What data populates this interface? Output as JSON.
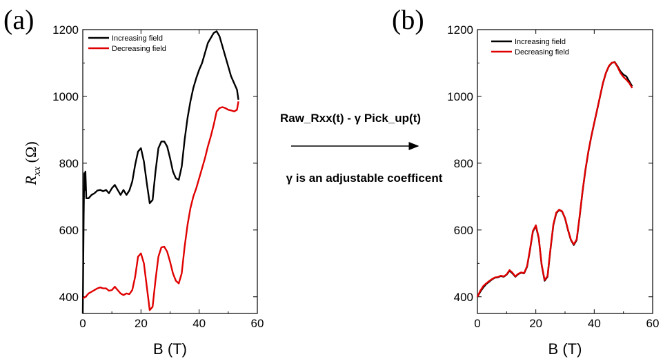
{
  "annotations": {
    "formula": "Raw_Rxx(t) - γ Pick_up(t)",
    "note": "γ is an adjustable coefficent"
  },
  "chart_data": [
    {
      "type": "line",
      "panel_label": "(a)",
      "xlabel": "B (T)",
      "ylabel": {
        "symbol": "R",
        "subscript": "xx",
        "unit": " (Ω)"
      },
      "xlim": [
        0,
        60
      ],
      "ylim": [
        350,
        1200
      ],
      "x_ticks": [
        0,
        20,
        40,
        60
      ],
      "y_ticks": [
        400,
        600,
        800,
        1000,
        1200
      ],
      "legend": "top-left",
      "series": [
        {
          "name": "Increasing field",
          "color": "#000000",
          "x": [
            0,
            0.3,
            0.5,
            0.7,
            0.9,
            1.2,
            2,
            3,
            4,
            5,
            6,
            7,
            8,
            9,
            10,
            11,
            12,
            13,
            14,
            15,
            16,
            17,
            18,
            19,
            20,
            21,
            22,
            23,
            24,
            25,
            26,
            27,
            28,
            29,
            30,
            31,
            32,
            33,
            34,
            35,
            36,
            37,
            38,
            39,
            40,
            41,
            42,
            43,
            44,
            45,
            46,
            47,
            48,
            49,
            50,
            51,
            52,
            53,
            53.5
          ],
          "y": [
            350,
            640,
            770,
            720,
            775,
            695,
            695,
            705,
            710,
            718,
            720,
            716,
            720,
            710,
            725,
            735,
            720,
            705,
            720,
            705,
            718,
            745,
            795,
            835,
            845,
            805,
            740,
            680,
            690,
            775,
            845,
            865,
            865,
            850,
            815,
            775,
            755,
            750,
            790,
            870,
            935,
            985,
            1025,
            1055,
            1080,
            1100,
            1130,
            1160,
            1175,
            1190,
            1195,
            1180,
            1150,
            1120,
            1090,
            1060,
            1040,
            1020,
            990
          ]
        },
        {
          "name": "Decreasing field",
          "color": "#e00000",
          "x": [
            0,
            1,
            2,
            3,
            4,
            5,
            6,
            7,
            8,
            9,
            10,
            11,
            12,
            13,
            14,
            15,
            16,
            17,
            18,
            19,
            20,
            21,
            22,
            23,
            24,
            25,
            26,
            27,
            28,
            29,
            30,
            31,
            32,
            33,
            34,
            35,
            36,
            37,
            38,
            39,
            40,
            41,
            42,
            43,
            44,
            45,
            46,
            47,
            48,
            49,
            50,
            51,
            52,
            53,
            53.5
          ],
          "y": [
            395,
            400,
            410,
            415,
            420,
            425,
            428,
            425,
            425,
            418,
            420,
            430,
            420,
            410,
            405,
            410,
            408,
            420,
            460,
            520,
            530,
            500,
            430,
            360,
            370,
            450,
            520,
            548,
            550,
            535,
            505,
            470,
            448,
            440,
            470,
            550,
            615,
            665,
            700,
            725,
            755,
            785,
            815,
            850,
            880,
            915,
            955,
            965,
            968,
            965,
            960,
            958,
            955,
            960,
            985
          ]
        }
      ]
    },
    {
      "type": "line",
      "panel_label": "(b)",
      "xlabel": "B (T)",
      "xlim": [
        0,
        60
      ],
      "ylim": [
        350,
        1200
      ],
      "x_ticks": [
        0,
        20,
        40,
        60
      ],
      "y_ticks": [
        400,
        600,
        800,
        1000,
        1200
      ],
      "legend": "top-left",
      "series": [
        {
          "name": "Increasing field",
          "color": "#000000",
          "x": [
            0,
            1,
            2,
            3,
            4,
            5,
            6,
            7,
            8,
            9,
            10,
            11,
            12,
            13,
            14,
            15,
            16,
            17,
            18,
            19,
            20,
            21,
            22,
            23,
            24,
            25,
            26,
            27,
            28,
            29,
            30,
            31,
            32,
            33,
            34,
            35,
            36,
            37,
            38,
            39,
            40,
            41,
            42,
            43,
            44,
            45,
            46,
            47,
            48,
            49,
            50,
            51,
            52,
            53
          ],
          "y": [
            400,
            415,
            428,
            438,
            445,
            452,
            457,
            458,
            462,
            460,
            466,
            478,
            470,
            460,
            468,
            472,
            470,
            490,
            540,
            595,
            612,
            575,
            495,
            448,
            460,
            540,
            615,
            650,
            660,
            655,
            635,
            600,
            570,
            555,
            570,
            640,
            715,
            780,
            835,
            880,
            920,
            960,
            1000,
            1040,
            1070,
            1090,
            1100,
            1103,
            1090,
            1075,
            1065,
            1060,
            1045,
            1030
          ]
        },
        {
          "name": "Decreasing field",
          "color": "#e00000",
          "x": [
            0,
            1,
            2,
            3,
            4,
            5,
            6,
            7,
            8,
            9,
            10,
            11,
            12,
            13,
            14,
            15,
            16,
            17,
            18,
            19,
            20,
            21,
            22,
            23,
            24,
            25,
            26,
            27,
            28,
            29,
            30,
            31,
            32,
            33,
            34,
            35,
            36,
            37,
            38,
            39,
            40,
            41,
            42,
            43,
            44,
            45,
            46,
            47,
            48,
            49,
            50,
            51,
            52,
            53
          ],
          "y": [
            400,
            418,
            432,
            440,
            447,
            453,
            458,
            459,
            463,
            461,
            467,
            480,
            472,
            461,
            469,
            473,
            471,
            492,
            542,
            597,
            614,
            577,
            497,
            450,
            462,
            542,
            617,
            652,
            661,
            656,
            636,
            602,
            571,
            557,
            572,
            642,
            717,
            781,
            836,
            881,
            921,
            961,
            1001,
            1041,
            1071,
            1091,
            1101,
            1102,
            1088,
            1070,
            1058,
            1050,
            1040,
            1025
          ]
        }
      ]
    }
  ]
}
